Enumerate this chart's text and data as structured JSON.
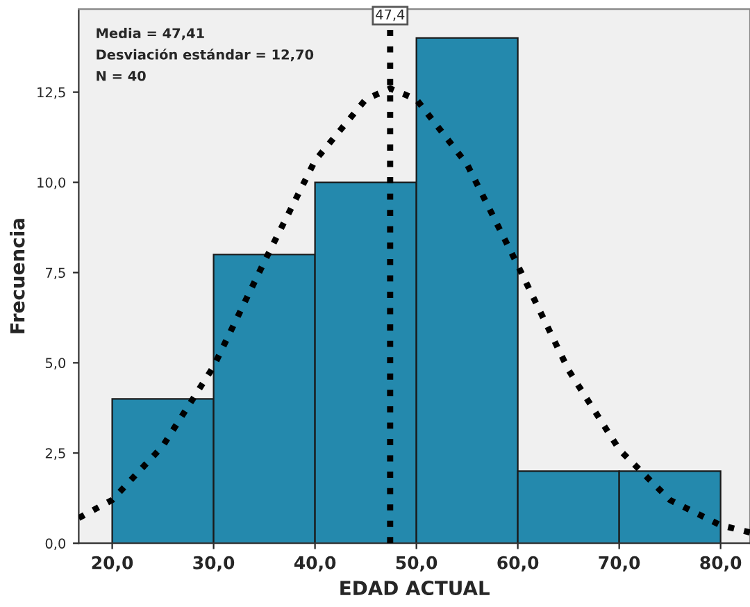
{
  "chart_data": {
    "type": "histogram",
    "xlabel": "EDAD ACTUAL",
    "ylabel": "Frecuencia",
    "bins": [
      20,
      30,
      40,
      50,
      60,
      70,
      80
    ],
    "values": [
      4,
      8,
      10,
      14,
      2,
      2
    ],
    "color": "#2489ad",
    "series": [
      {
        "type": "line",
        "color": "#000000",
        "line_style": "dotted",
        "x": [
          16.7,
          20,
          25,
          30,
          35,
          40,
          45,
          47.41,
          50,
          55,
          60,
          65,
          70,
          75,
          80,
          82.9
        ],
        "values": [
          0.7,
          1.2,
          2.7,
          4.9,
          7.8,
          10.6,
          12.3,
          12.6,
          12.3,
          10.5,
          7.7,
          4.8,
          2.6,
          1.2,
          0.5,
          0.3
        ]
      }
    ],
    "ref_lines": [
      {
        "axis": "x",
        "value": 47.41,
        "label": "47,4",
        "color": "#000000",
        "line_style": "dotted"
      }
    ],
    "annotations": [
      "Media = 47,41",
      "Desviación estándar = 12,70",
      "N = 40"
    ],
    "xlim": [
      16.7,
      82.9
    ],
    "ylim": [
      0,
      14.8
    ],
    "xticks": [
      {
        "value": 20,
        "label": "20,0"
      },
      {
        "value": 30,
        "label": "30,0"
      },
      {
        "value": 40,
        "label": "40,0"
      },
      {
        "value": 50,
        "label": "50,0"
      },
      {
        "value": 60,
        "label": "60,0"
      },
      {
        "value": 70,
        "label": "70,0"
      },
      {
        "value": 80,
        "label": "80,0"
      }
    ],
    "yticks": [
      {
        "value": 0,
        "label": "0,0"
      },
      {
        "value": 2.5,
        "label": "2,5"
      },
      {
        "value": 5,
        "label": "5,0"
      },
      {
        "value": 7.5,
        "label": "7,5"
      },
      {
        "value": 10,
        "label": "10,0"
      },
      {
        "value": 12.5,
        "label": "12,5"
      }
    ],
    "grid": false,
    "legend": false
  }
}
